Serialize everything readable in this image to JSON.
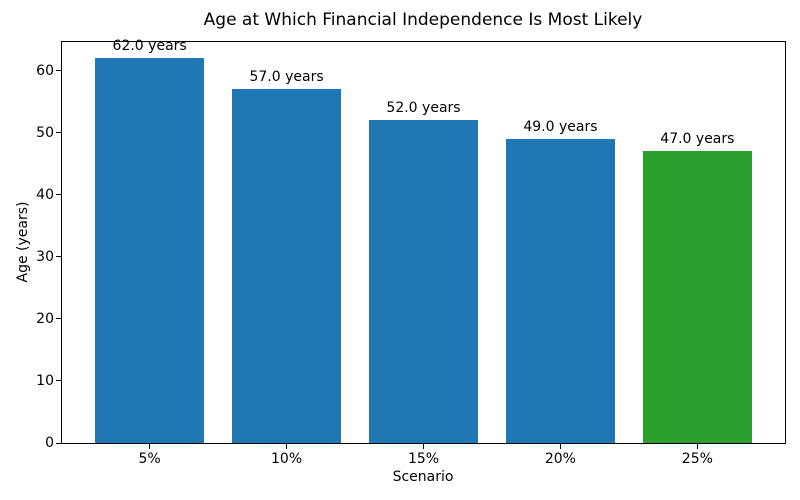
{
  "chart_data": {
    "type": "bar",
    "title": "Age at Which Financial Independence Is Most Likely",
    "xlabel": "Scenario",
    "ylabel": "Age (years)",
    "categories": [
      "5%",
      "10%",
      "15%",
      "20%",
      "25%"
    ],
    "values": [
      62.0,
      57.0,
      52.0,
      49.0,
      47.0
    ],
    "bar_labels": [
      "62.0 years",
      "57.0 years",
      "52.0 years",
      "49.0 years",
      "47.0 years"
    ],
    "bar_colors": [
      "#1f77b4",
      "#1f77b4",
      "#1f77b4",
      "#1f77b4",
      "#2ca02c"
    ],
    "yticks": [
      0,
      10,
      20,
      30,
      40,
      50,
      60
    ],
    "ylim": [
      0,
      64.6
    ],
    "xlim": [
      -0.64,
      4.64
    ],
    "bar_width": 0.8,
    "grid": false,
    "legend": false,
    "axes_color": "#000000",
    "text_color": "#000000",
    "background": "#ffffff"
  }
}
